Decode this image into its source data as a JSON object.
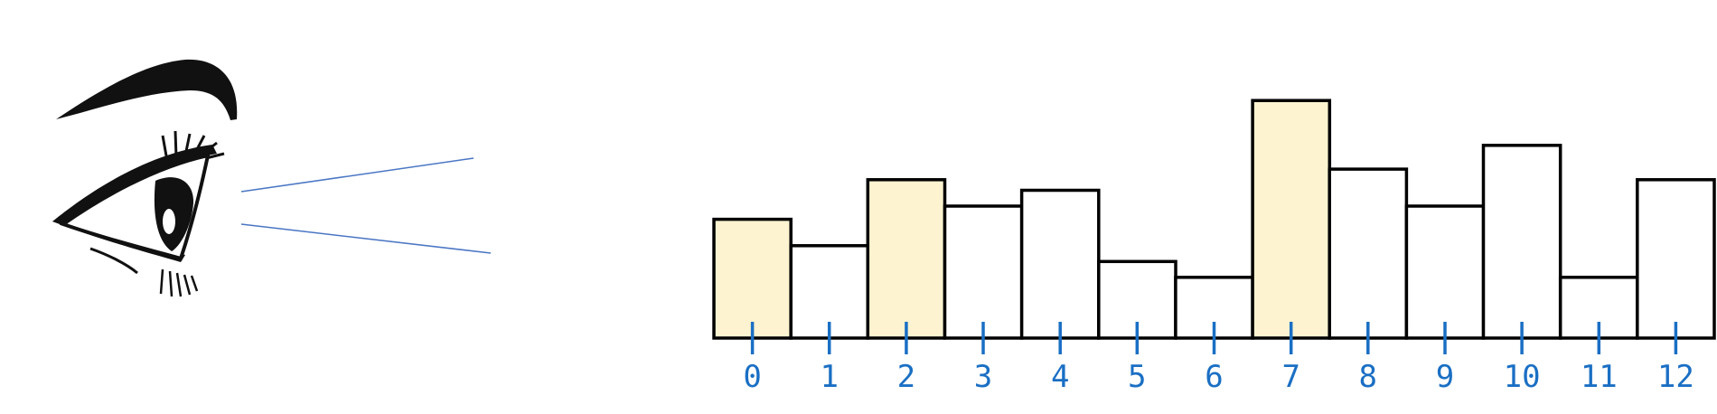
{
  "chart_data": {
    "type": "bar",
    "categories": [
      "0",
      "1",
      "2",
      "3",
      "4",
      "5",
      "6",
      "7",
      "8",
      "9",
      "10",
      "11",
      "12"
    ],
    "values": [
      4.5,
      3.5,
      6.0,
      5.0,
      5.6,
      2.9,
      2.3,
      9.0,
      6.4,
      5.0,
      7.3,
      2.3,
      6.0
    ],
    "highlighted": [
      0,
      2,
      7
    ],
    "ylim": [
      0,
      10
    ],
    "grid": false,
    "title": "",
    "xlabel": "",
    "ylabel": ""
  },
  "colors": {
    "highlight_fill": "#fdf3d0",
    "bar_fill": "#ffffff",
    "bar_stroke": "#000000",
    "tick_color": "#1a6fc4",
    "sight_line": "#4a76c4"
  },
  "icons": {
    "eye": "eye-icon"
  }
}
